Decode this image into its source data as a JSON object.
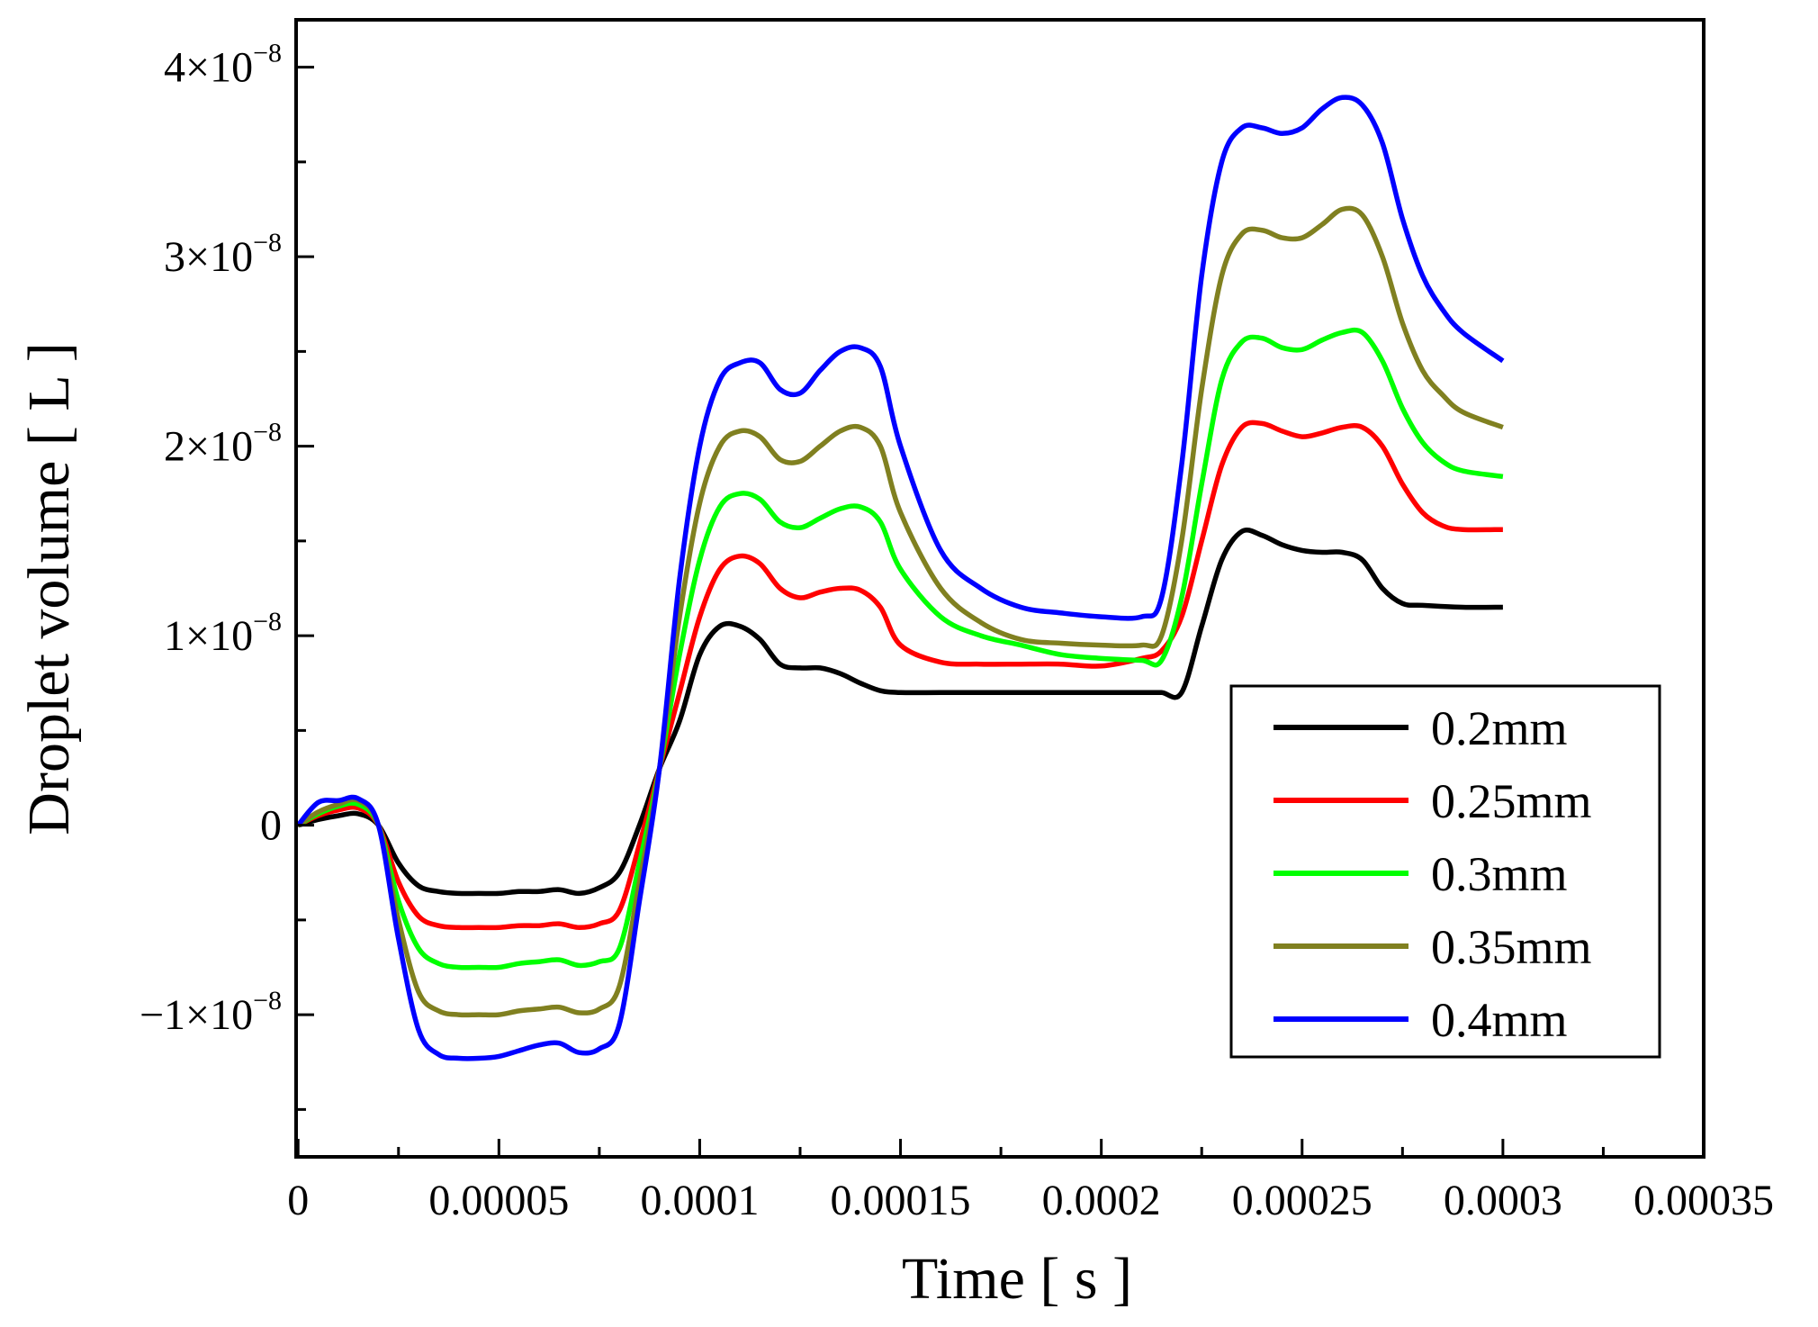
{
  "chart_data": {
    "type": "line",
    "title": "",
    "xlabel": "Time [ s ]",
    "ylabel": "Droplet volume [ L ]",
    "xlim": [
      -5e-07,
      0.00035
    ],
    "ylim": [
      -1.75e-08,
      4.25e-08
    ],
    "x_ticks": [
      {
        "value": 0,
        "label": "0"
      },
      {
        "value": 5e-05,
        "label": "0.00005"
      },
      {
        "value": 0.0001,
        "label": "0.0001"
      },
      {
        "value": 0.00015,
        "label": "0.00015"
      },
      {
        "value": 0.0002,
        "label": "0.0002"
      },
      {
        "value": 0.00025,
        "label": "0.00025"
      },
      {
        "value": 0.0003,
        "label": "0.0003"
      },
      {
        "value": 0.00035,
        "label": "0.00035"
      }
    ],
    "y_ticks": [
      {
        "value": -1e-08,
        "mantissa": "−1×10",
        "exponent": "−8"
      },
      {
        "value": 0,
        "mantissa": "0",
        "exponent": ""
      },
      {
        "value": 1e-08,
        "mantissa": "1×10",
        "exponent": "−8"
      },
      {
        "value": 2e-08,
        "mantissa": "2×10",
        "exponent": "−8"
      },
      {
        "value": 3e-08,
        "mantissa": "3×10",
        "exponent": "−8"
      },
      {
        "value": 4e-08,
        "mantissa": "4×10",
        "exponent": "−8"
      }
    ],
    "legend_position": "bottom-right",
    "grid": false,
    "series": [
      {
        "name": "0.2mm",
        "color": "#000000",
        "x": [
          0,
          5e-06,
          1e-05,
          1.5e-05,
          2e-05,
          2.5e-05,
          3e-05,
          3.5e-05,
          4e-05,
          4.5e-05,
          5e-05,
          5.5e-05,
          6e-05,
          6.5e-05,
          7e-05,
          7.5e-05,
          8e-05,
          8.5e-05,
          9e-05,
          9.5e-05,
          0.0001,
          0.000105,
          0.00011,
          0.000115,
          0.00012,
          0.000125,
          0.00013,
          0.000135,
          0.00014,
          0.000145,
          0.00015,
          0.00016,
          0.00017,
          0.00018,
          0.00019,
          0.0002,
          0.00021,
          0.000215,
          0.00022,
          0.000225,
          0.00023,
          0.000235,
          0.00024,
          0.000245,
          0.00025,
          0.000255,
          0.00026,
          0.000265,
          0.00027,
          0.000275,
          0.00028,
          0.00029,
          0.0003
        ],
        "y": [
          0,
          3e-10,
          5e-10,
          6e-10,
          0,
          -2e-09,
          -3.2e-09,
          -3.5e-09,
          -3.6e-09,
          -3.6e-09,
          -3.6e-09,
          -3.5e-09,
          -3.5e-09,
          -3.4e-09,
          -3.6e-09,
          -3.3e-09,
          -2.5e-09,
          0,
          3e-09,
          5.5e-09,
          9e-09,
          1.05e-08,
          1.05e-08,
          9.8e-09,
          8.5e-09,
          8.3e-09,
          8.3e-09,
          8e-09,
          7.5e-09,
          7.1e-09,
          7e-09,
          7e-09,
          7e-09,
          7e-09,
          7e-09,
          7e-09,
          7e-09,
          7e-09,
          7e-09,
          1.05e-08,
          1.4e-08,
          1.55e-08,
          1.53e-08,
          1.48e-08,
          1.45e-08,
          1.44e-08,
          1.44e-08,
          1.4e-08,
          1.25e-08,
          1.17e-08,
          1.16e-08,
          1.15e-08,
          1.15e-08
        ]
      },
      {
        "name": "0.25mm",
        "color": "#ff0000",
        "x": [
          0,
          5e-06,
          1e-05,
          1.5e-05,
          2e-05,
          2.5e-05,
          3e-05,
          3.5e-05,
          4e-05,
          4.5e-05,
          5e-05,
          5.5e-05,
          6e-05,
          6.5e-05,
          7e-05,
          7.5e-05,
          8e-05,
          8.5e-05,
          9e-05,
          9.5e-05,
          0.0001,
          0.000105,
          0.00011,
          0.000115,
          0.00012,
          0.000125,
          0.00013,
          0.000135,
          0.00014,
          0.000145,
          0.00015,
          0.00016,
          0.00017,
          0.00018,
          0.00019,
          0.0002,
          0.00021,
          0.000215,
          0.00022,
          0.000225,
          0.00023,
          0.000235,
          0.00024,
          0.000245,
          0.00025,
          0.000255,
          0.00026,
          0.000265,
          0.00027,
          0.000275,
          0.00028,
          0.000285,
          0.00029,
          0.0003
        ],
        "y": [
          0,
          5e-10,
          8e-10,
          9e-10,
          0,
          -3e-09,
          -4.8e-09,
          -5.3e-09,
          -5.4e-09,
          -5.4e-09,
          -5.4e-09,
          -5.3e-09,
          -5.3e-09,
          -5.2e-09,
          -5.4e-09,
          -5.2e-09,
          -4.5e-09,
          -1e-09,
          3e-09,
          7e-09,
          1.1e-08,
          1.35e-08,
          1.42e-08,
          1.38e-08,
          1.25e-08,
          1.2e-08,
          1.23e-08,
          1.25e-08,
          1.24e-08,
          1.15e-08,
          9.5e-09,
          8.6e-09,
          8.5e-09,
          8.5e-09,
          8.5e-09,
          8.4e-09,
          8.8e-09,
          9.2e-09,
          1.1e-08,
          1.5e-08,
          1.9e-08,
          2.1e-08,
          2.12e-08,
          2.08e-08,
          2.05e-08,
          2.07e-08,
          2.1e-08,
          2.1e-08,
          2e-08,
          1.8e-08,
          1.65e-08,
          1.58e-08,
          1.56e-08,
          1.56e-08
        ]
      },
      {
        "name": "0.3mm",
        "color": "#00ff00",
        "x": [
          0,
          5e-06,
          1e-05,
          1.5e-05,
          2e-05,
          2.5e-05,
          3e-05,
          3.5e-05,
          4e-05,
          4.5e-05,
          5e-05,
          5.5e-05,
          6e-05,
          6.5e-05,
          7e-05,
          7.5e-05,
          8e-05,
          8.5e-05,
          9e-05,
          9.5e-05,
          0.0001,
          0.000105,
          0.00011,
          0.000115,
          0.00012,
          0.000125,
          0.00013,
          0.000135,
          0.00014,
          0.000145,
          0.00015,
          0.00016,
          0.00017,
          0.00018,
          0.00019,
          0.0002,
          0.00021,
          0.000215,
          0.00022,
          0.000225,
          0.00023,
          0.000235,
          0.00024,
          0.000245,
          0.00025,
          0.000255,
          0.00026,
          0.000265,
          0.00027,
          0.000275,
          0.00028,
          0.000285,
          0.00029,
          0.0003
        ],
        "y": [
          0,
          6e-10,
          1e-09,
          1.1e-09,
          0,
          -4e-09,
          -6.5e-09,
          -7.3e-09,
          -7.5e-09,
          -7.5e-09,
          -7.5e-09,
          -7.3e-09,
          -7.2e-09,
          -7.1e-09,
          -7.4e-09,
          -7.2e-09,
          -6.5e-09,
          -2e-09,
          3e-09,
          9e-09,
          1.4e-08,
          1.68e-08,
          1.75e-08,
          1.72e-08,
          1.6e-08,
          1.57e-08,
          1.62e-08,
          1.67e-08,
          1.68e-08,
          1.6e-08,
          1.35e-08,
          1.1e-08,
          1e-08,
          9.5e-09,
          9e-09,
          8.8e-09,
          8.7e-09,
          8.7e-09,
          1.2e-08,
          1.8e-08,
          2.35e-08,
          2.55e-08,
          2.57e-08,
          2.52e-08,
          2.51e-08,
          2.56e-08,
          2.6e-08,
          2.6e-08,
          2.45e-08,
          2.2e-08,
          2.02e-08,
          1.92e-08,
          1.87e-08,
          1.84e-08
        ]
      },
      {
        "name": "0.35mm",
        "color": "#808020",
        "x": [
          0,
          5e-06,
          1e-05,
          1.5e-05,
          2e-05,
          2.5e-05,
          3e-05,
          3.5e-05,
          4e-05,
          4.5e-05,
          5e-05,
          5.5e-05,
          6e-05,
          6.5e-05,
          7e-05,
          7.5e-05,
          8e-05,
          8.5e-05,
          9e-05,
          9.5e-05,
          0.0001,
          0.000105,
          0.00011,
          0.000115,
          0.00012,
          0.000125,
          0.00013,
          0.000135,
          0.00014,
          0.000145,
          0.00015,
          0.00016,
          0.00017,
          0.00018,
          0.00019,
          0.0002,
          0.00021,
          0.000215,
          0.00022,
          0.000225,
          0.00023,
          0.000235,
          0.00024,
          0.000245,
          0.00025,
          0.000255,
          0.00026,
          0.000265,
          0.00027,
          0.000275,
          0.00028,
          0.000285,
          0.00029,
          0.0003
        ],
        "y": [
          0,
          7e-10,
          1.1e-09,
          1.3e-09,
          0,
          -5e-09,
          -8.8e-09,
          -9.8e-09,
          -1e-08,
          -1e-08,
          -1e-08,
          -9.8e-09,
          -9.7e-09,
          -9.6e-09,
          -9.9e-09,
          -9.7e-09,
          -8.5e-09,
          -3e-09,
          3e-09,
          1.1e-08,
          1.7e-08,
          2e-08,
          2.08e-08,
          2.05e-08,
          1.93e-08,
          1.92e-08,
          2e-08,
          2.08e-08,
          2.1e-08,
          2e-08,
          1.65e-08,
          1.25e-08,
          1.07e-08,
          9.8e-09,
          9.6e-09,
          9.5e-09,
          9.5e-09,
          1e-08,
          1.5e-08,
          2.3e-08,
          2.9e-08,
          3.12e-08,
          3.14e-08,
          3.1e-08,
          3.1e-08,
          3.17e-08,
          3.25e-08,
          3.22e-08,
          3e-08,
          2.65e-08,
          2.4e-08,
          2.27e-08,
          2.18e-08,
          2.1e-08
        ]
      },
      {
        "name": "0.4mm",
        "color": "#0000ff",
        "x": [
          0,
          5e-06,
          1e-05,
          1.5e-05,
          2e-05,
          2.5e-05,
          3e-05,
          3.5e-05,
          4e-05,
          4.5e-05,
          5e-05,
          5.5e-05,
          6e-05,
          6.5e-05,
          7e-05,
          7.5e-05,
          8e-05,
          8.5e-05,
          9e-05,
          9.5e-05,
          0.0001,
          0.000105,
          0.00011,
          0.000115,
          0.00012,
          0.000125,
          0.00013,
          0.000135,
          0.00014,
          0.000145,
          0.00015,
          0.00016,
          0.00017,
          0.00018,
          0.00019,
          0.0002,
          0.00021,
          0.000215,
          0.00022,
          0.000225,
          0.00023,
          0.000235,
          0.00024,
          0.000245,
          0.00025,
          0.000255,
          0.00026,
          0.000265,
          0.00027,
          0.000275,
          0.00028,
          0.000285,
          0.00029,
          0.0003
        ],
        "y": [
          0,
          1.2e-09,
          1.3e-09,
          1.4e-09,
          0,
          -6e-09,
          -1.08e-08,
          -1.21e-08,
          -1.23e-08,
          -1.23e-08,
          -1.22e-08,
          -1.19e-08,
          -1.16e-08,
          -1.15e-08,
          -1.2e-08,
          -1.18e-08,
          -1.05e-08,
          -4e-09,
          3e-09,
          1.3e-08,
          2e-08,
          2.35e-08,
          2.44e-08,
          2.44e-08,
          2.3e-08,
          2.28e-08,
          2.4e-08,
          2.5e-08,
          2.52e-08,
          2.42e-08,
          2e-08,
          1.45e-08,
          1.25e-08,
          1.15e-08,
          1.12e-08,
          1.1e-08,
          1.1e-08,
          1.2e-08,
          1.9e-08,
          2.9e-08,
          3.5e-08,
          3.68e-08,
          3.68e-08,
          3.65e-08,
          3.68e-08,
          3.78e-08,
          3.84e-08,
          3.8e-08,
          3.6e-08,
          3.2e-08,
          2.9e-08,
          2.72e-08,
          2.6e-08,
          2.45e-08
        ]
      }
    ]
  }
}
